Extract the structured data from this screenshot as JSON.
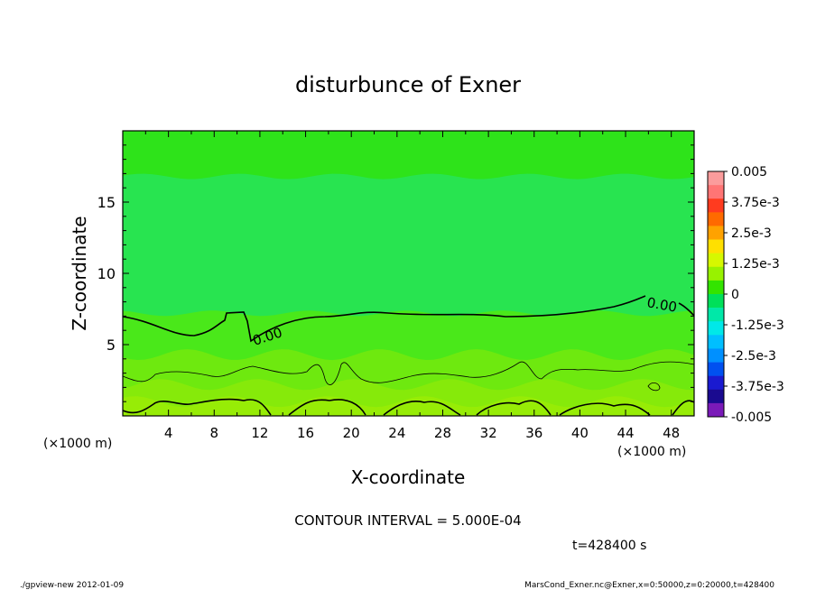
{
  "chart_data": {
    "type": "heatmap",
    "title": "disturbunce of Exner",
    "xlabel": "X-coordinate",
    "ylabel": "Z-coordinate",
    "x_unit_left": "(×1000 m)",
    "x_unit_right": "(×1000 m)",
    "xlim": [
      0,
      50
    ],
    "ylim": [
      0,
      20
    ],
    "x_ticks": [
      4,
      8,
      12,
      16,
      20,
      24,
      28,
      32,
      36,
      40,
      44,
      48
    ],
    "y_ticks": [
      5,
      10,
      15
    ],
    "colorbar": {
      "labels": [
        "0.005",
        "3.75e-3",
        "2.5e-3",
        "1.25e-3",
        "0",
        "-1.25e-3",
        "-2.5e-3",
        "-3.75e-3",
        "-0.005"
      ],
      "levels": [
        {
          "color": "#fb9c9c"
        },
        {
          "color": "#ff7575"
        },
        {
          "color": "#ff3b1f"
        },
        {
          "color": "#ff6a00"
        },
        {
          "color": "#ffa200"
        },
        {
          "color": "#ffe000"
        },
        {
          "color": "#d6f800"
        },
        {
          "color": "#98f200"
        },
        {
          "color": "#33e400"
        },
        {
          "color": "#00e05a"
        },
        {
          "color": "#00e8a8"
        },
        {
          "color": "#00e8e8"
        },
        {
          "color": "#00bfff"
        },
        {
          "color": "#0090ff"
        },
        {
          "color": "#0050f0"
        },
        {
          "color": "#1a1ad0"
        },
        {
          "color": "#1a0a90"
        },
        {
          "color": "#7a1ab8"
        }
      ]
    },
    "bands": [
      {
        "z_top": 20,
        "color": "#2ee31a"
      },
      {
        "z_top": 16.8,
        "color": "#28e450"
      },
      {
        "z_top": 7.2,
        "color": "#4ae81a"
      },
      {
        "z_top": 4.3,
        "color": "#6ee90f"
      },
      {
        "z_top": 2.2,
        "color": "#86ea0a"
      },
      {
        "z_top": 1.0,
        "color": "#97ec06"
      }
    ],
    "contour_label": "0.00",
    "contour_interval_text": "CONTOUR INTERVAL = 5.000E-04",
    "time_text": "t=428400 s"
  },
  "footer": {
    "left": "./gpview-new  2012-01-09",
    "right": "MarsCond_Exner.nc@Exner,x=0:50000,z=0:20000,t=428400"
  }
}
